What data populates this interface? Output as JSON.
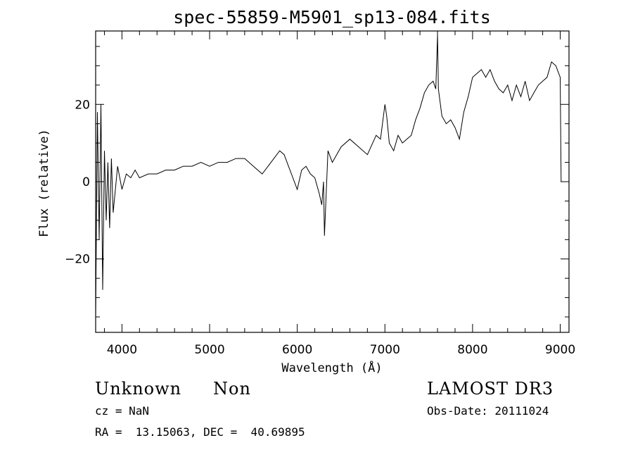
{
  "chart_data": {
    "type": "line",
    "title": "spec-55859-M5901_sp13-084.fits",
    "xlabel": "Wavelength (Å)",
    "ylabel": "Flux (relative)",
    "xlim": [
      3700,
      9100
    ],
    "ylim": [
      -39,
      39
    ],
    "xticks": [
      4000,
      5000,
      6000,
      7000,
      8000,
      9000
    ],
    "yticks": [
      -20,
      0,
      20
    ],
    "ytick_labels": [
      "−20",
      "0",
      "20"
    ],
    "grid": false,
    "series": [
      {
        "x": [
          3700,
          3720,
          3740,
          3760,
          3780,
          3800,
          3820,
          3840,
          3860,
          3880,
          3900,
          3950,
          4000,
          4050,
          4100,
          4150,
          4200,
          4300,
          4400,
          4500,
          4600,
          4700,
          4800,
          4900,
          5000,
          5100,
          5200,
          5300,
          5400,
          5500,
          5600,
          5700,
          5800,
          5850,
          5900,
          5950,
          6000,
          6050,
          6100,
          6150,
          6200,
          6250,
          6280,
          6300,
          6310,
          6350,
          6400,
          6500,
          6600,
          6700,
          6800,
          6900,
          6950,
          7000,
          7020,
          7050,
          7100,
          7150,
          7200,
          7250,
          7300,
          7350,
          7400,
          7450,
          7500,
          7550,
          7580,
          7600,
          7610,
          7650,
          7700,
          7750,
          7800,
          7850,
          7900,
          7950,
          8000,
          8050,
          8100,
          8150,
          8200,
          8250,
          8300,
          8350,
          8400,
          8450,
          8500,
          8550,
          8600,
          8650,
          8700,
          8750,
          8800,
          8850,
          8900,
          8950,
          9000,
          9010
        ],
        "y": [
          -35,
          18,
          -15,
          20,
          -28,
          8,
          -10,
          5,
          -12,
          6,
          -8,
          4,
          -2,
          2,
          1,
          3,
          1,
          2,
          2,
          3,
          3,
          4,
          4,
          5,
          4,
          5,
          5,
          6,
          6,
          4,
          2,
          5,
          8,
          7,
          4,
          1,
          -2,
          3,
          4,
          2,
          1,
          -3,
          -6,
          0,
          -14,
          8,
          5,
          9,
          11,
          9,
          7,
          12,
          11,
          20,
          17,
          10,
          8,
          12,
          10,
          11,
          12,
          16,
          19,
          23,
          25,
          26,
          24,
          38,
          24,
          17,
          15,
          16,
          14,
          11,
          18,
          22,
          27,
          28,
          29,
          27,
          29,
          26,
          24,
          23,
          25,
          21,
          25,
          22,
          26,
          21,
          23,
          25,
          26,
          27,
          31,
          30,
          27,
          0
        ]
      }
    ]
  },
  "info": {
    "object_type": "Unknown",
    "subclass": "Non",
    "survey": "LAMOST DR3",
    "cz": "cz = NaN",
    "obs_date": "Obs-Date: 20111024",
    "coords": "RA =  13.15063, DEC =  40.69895"
  }
}
